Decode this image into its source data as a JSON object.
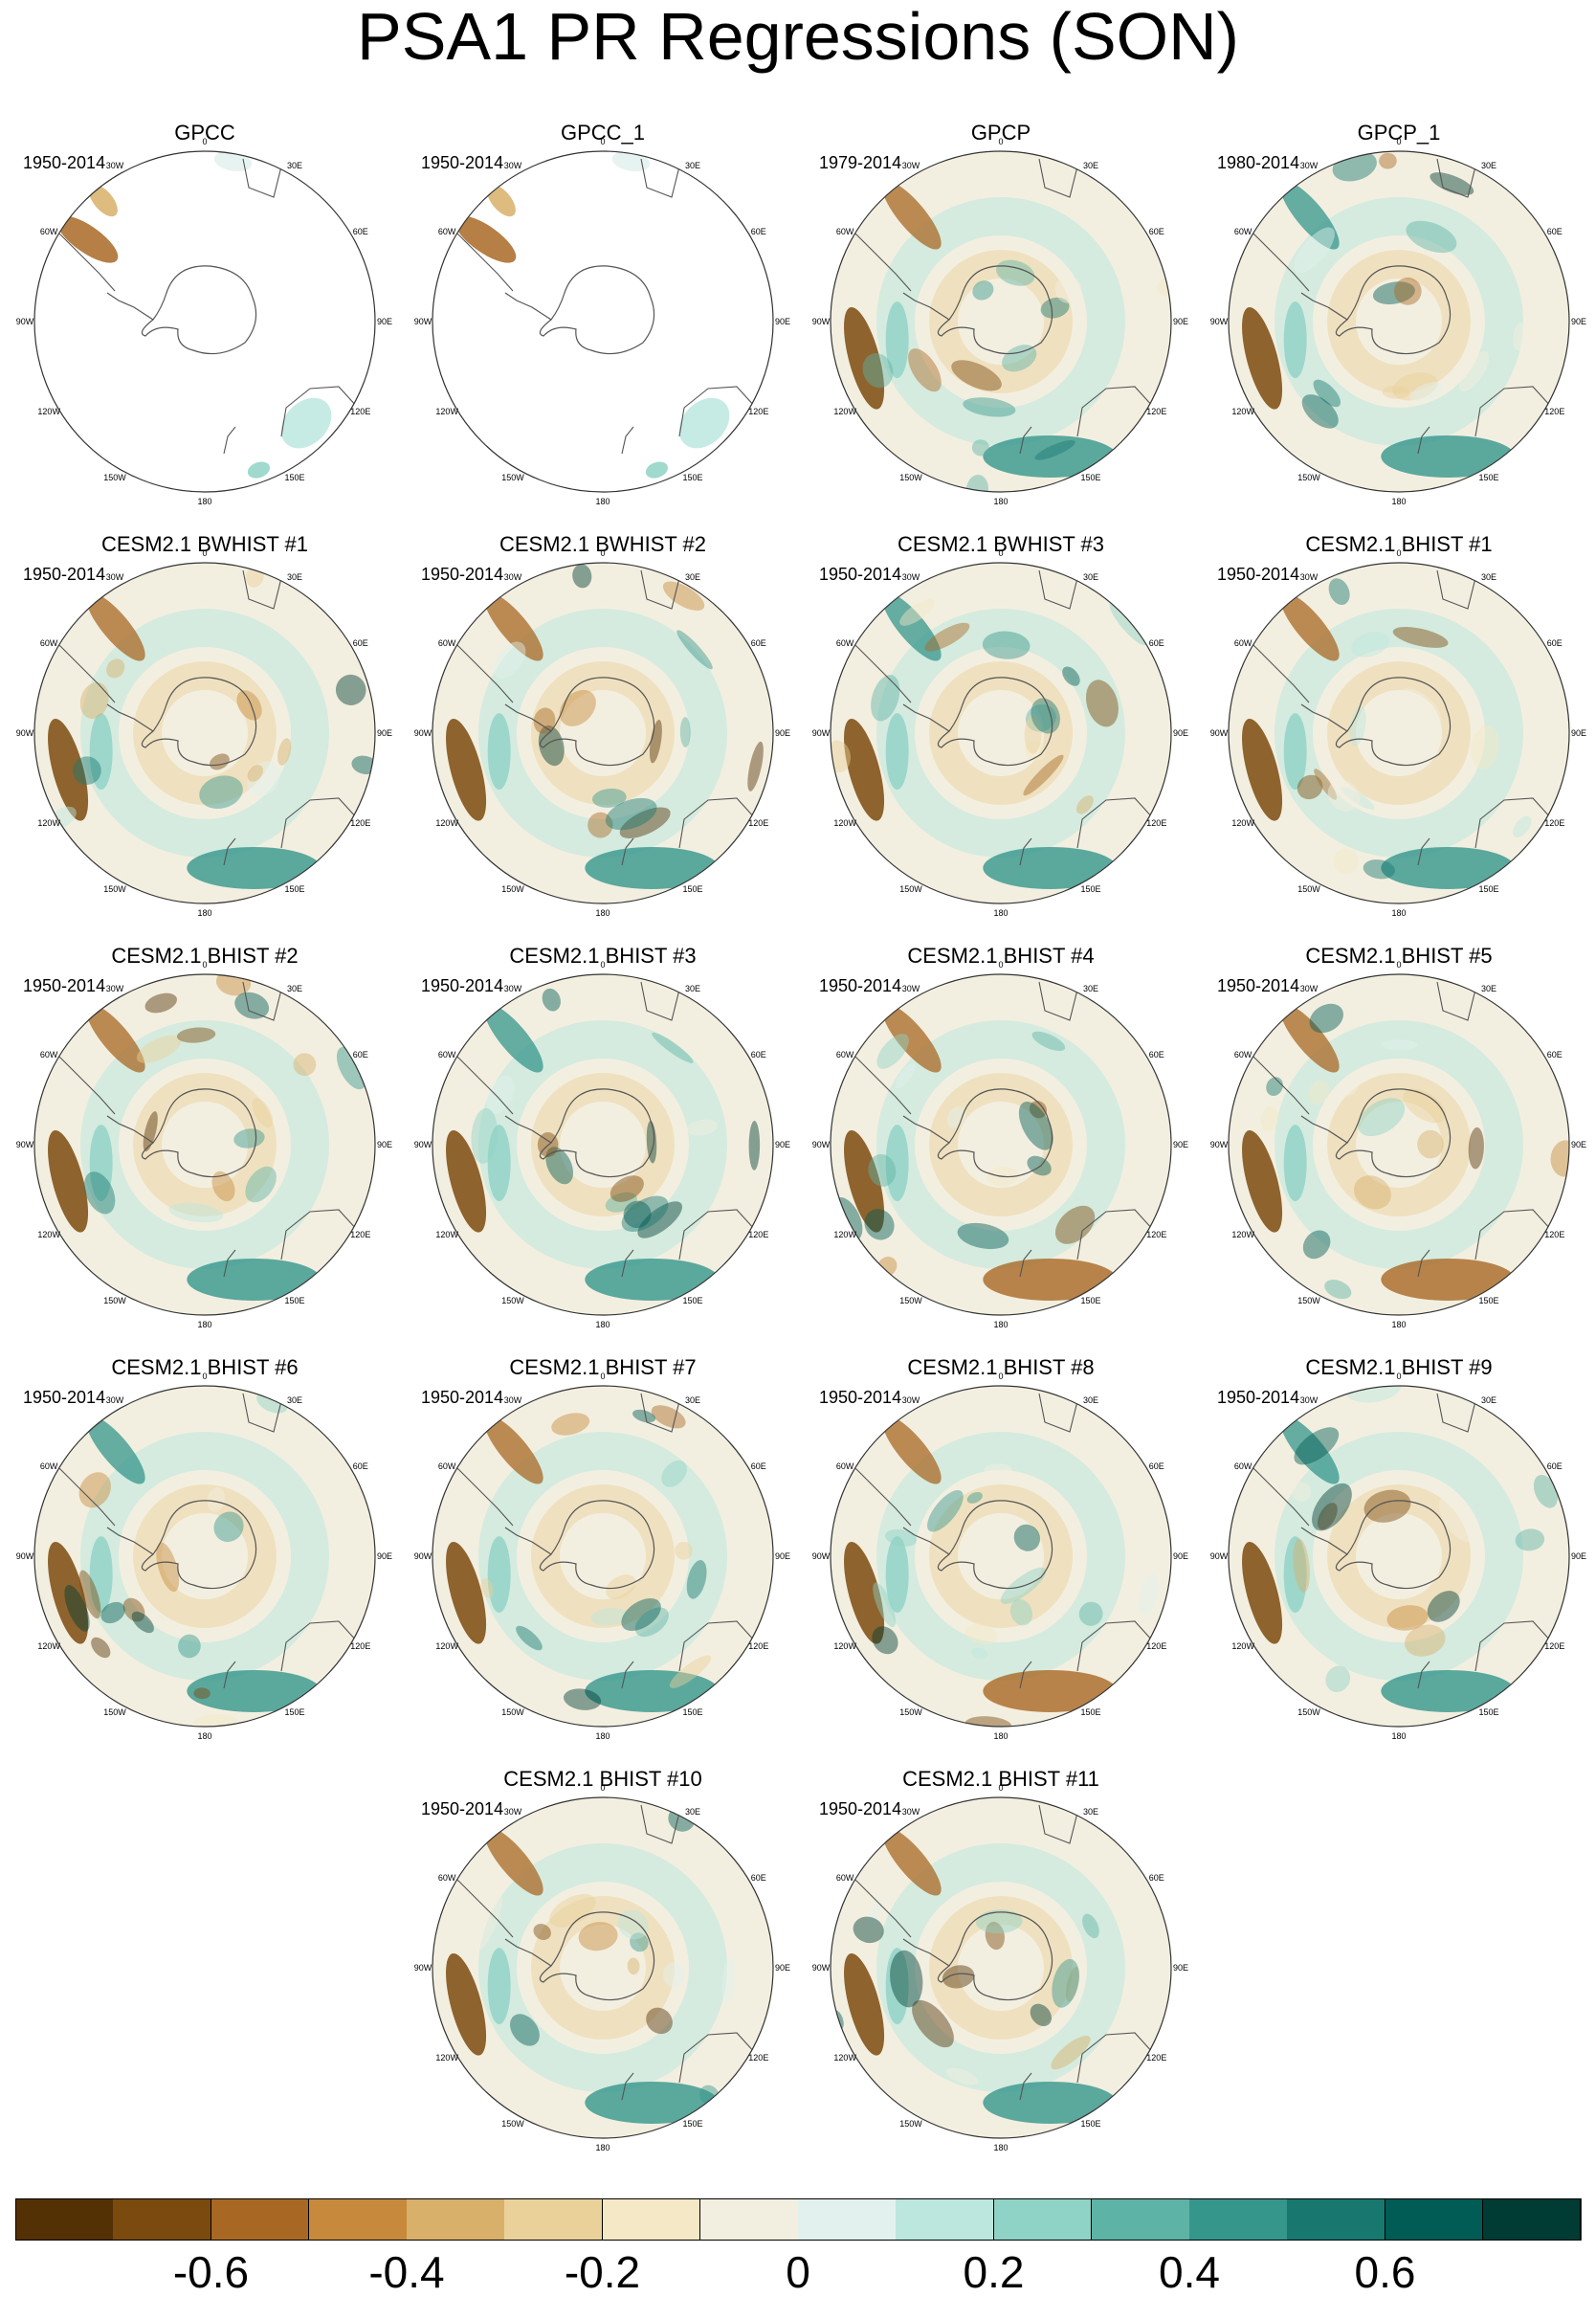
{
  "title": "PSA1 PR Regressions (SON)",
  "lon_labels": [
    "0",
    "30E",
    "60E",
    "90E",
    "120E",
    "150E",
    "180",
    "150W",
    "120W",
    "90W",
    "60W",
    "30W"
  ],
  "panels": [
    {
      "title": "GPCC",
      "years": "1950-2014",
      "kind": "land"
    },
    {
      "title": "GPCC_1",
      "years": "1950-2014",
      "kind": "land"
    },
    {
      "title": "GPCP",
      "years": "1979-2014",
      "kind": "obs"
    },
    {
      "title": "GPCP_1",
      "years": "1980-2014",
      "kind": "obs"
    },
    {
      "title": "CESM2.1 BWHIST #1",
      "years": "1950-2014",
      "kind": "model"
    },
    {
      "title": "CESM2.1 BWHIST #2",
      "years": "1950-2014",
      "kind": "model"
    },
    {
      "title": "CESM2.1 BWHIST #3",
      "years": "1950-2014",
      "kind": "model"
    },
    {
      "title": "CESM2.1 BHIST #1",
      "years": "1950-2014",
      "kind": "model"
    },
    {
      "title": "CESM2.1 BHIST #2",
      "years": "1950-2014",
      "kind": "model"
    },
    {
      "title": "CESM2.1 BHIST #3",
      "years": "1950-2014",
      "kind": "model"
    },
    {
      "title": "CESM2.1 BHIST #4",
      "years": "1950-2014",
      "kind": "model"
    },
    {
      "title": "CESM2.1 BHIST #5",
      "years": "1950-2014",
      "kind": "model"
    },
    {
      "title": "CESM2.1 BHIST #6",
      "years": "1950-2014",
      "kind": "model"
    },
    {
      "title": "CESM2.1 BHIST #7",
      "years": "1950-2014",
      "kind": "model"
    },
    {
      "title": "CESM2.1 BHIST #8",
      "years": "1950-2014",
      "kind": "model"
    },
    {
      "title": "CESM2.1 BHIST #9",
      "years": "1950-2014",
      "kind": "model"
    },
    {
      "title": "CESM2.1 BHIST #10",
      "years": "1950-2014",
      "kind": "model"
    },
    {
      "title": "CESM2.1 BHIST #11",
      "years": "1950-2014",
      "kind": "model"
    }
  ],
  "colorbar": {
    "colors": [
      "#543005",
      "#7b4a0e",
      "#a86824",
      "#c78a3c",
      "#d8b06a",
      "#ead19a",
      "#f5e8c6",
      "#f3efe0",
      "#e2f1ee",
      "#bce7df",
      "#8fd2c6",
      "#5db3a6",
      "#35968c",
      "#187870",
      "#005c55",
      "#003b34"
    ],
    "labels": [
      "-0.6",
      "-0.4",
      "-0.2",
      "0",
      "0.2",
      "0.4",
      "0.6"
    ],
    "label_values": [
      -0.6,
      -0.4,
      -0.2,
      0,
      0.2,
      0.4,
      0.6
    ],
    "range": [
      -0.8,
      0.8
    ]
  }
}
